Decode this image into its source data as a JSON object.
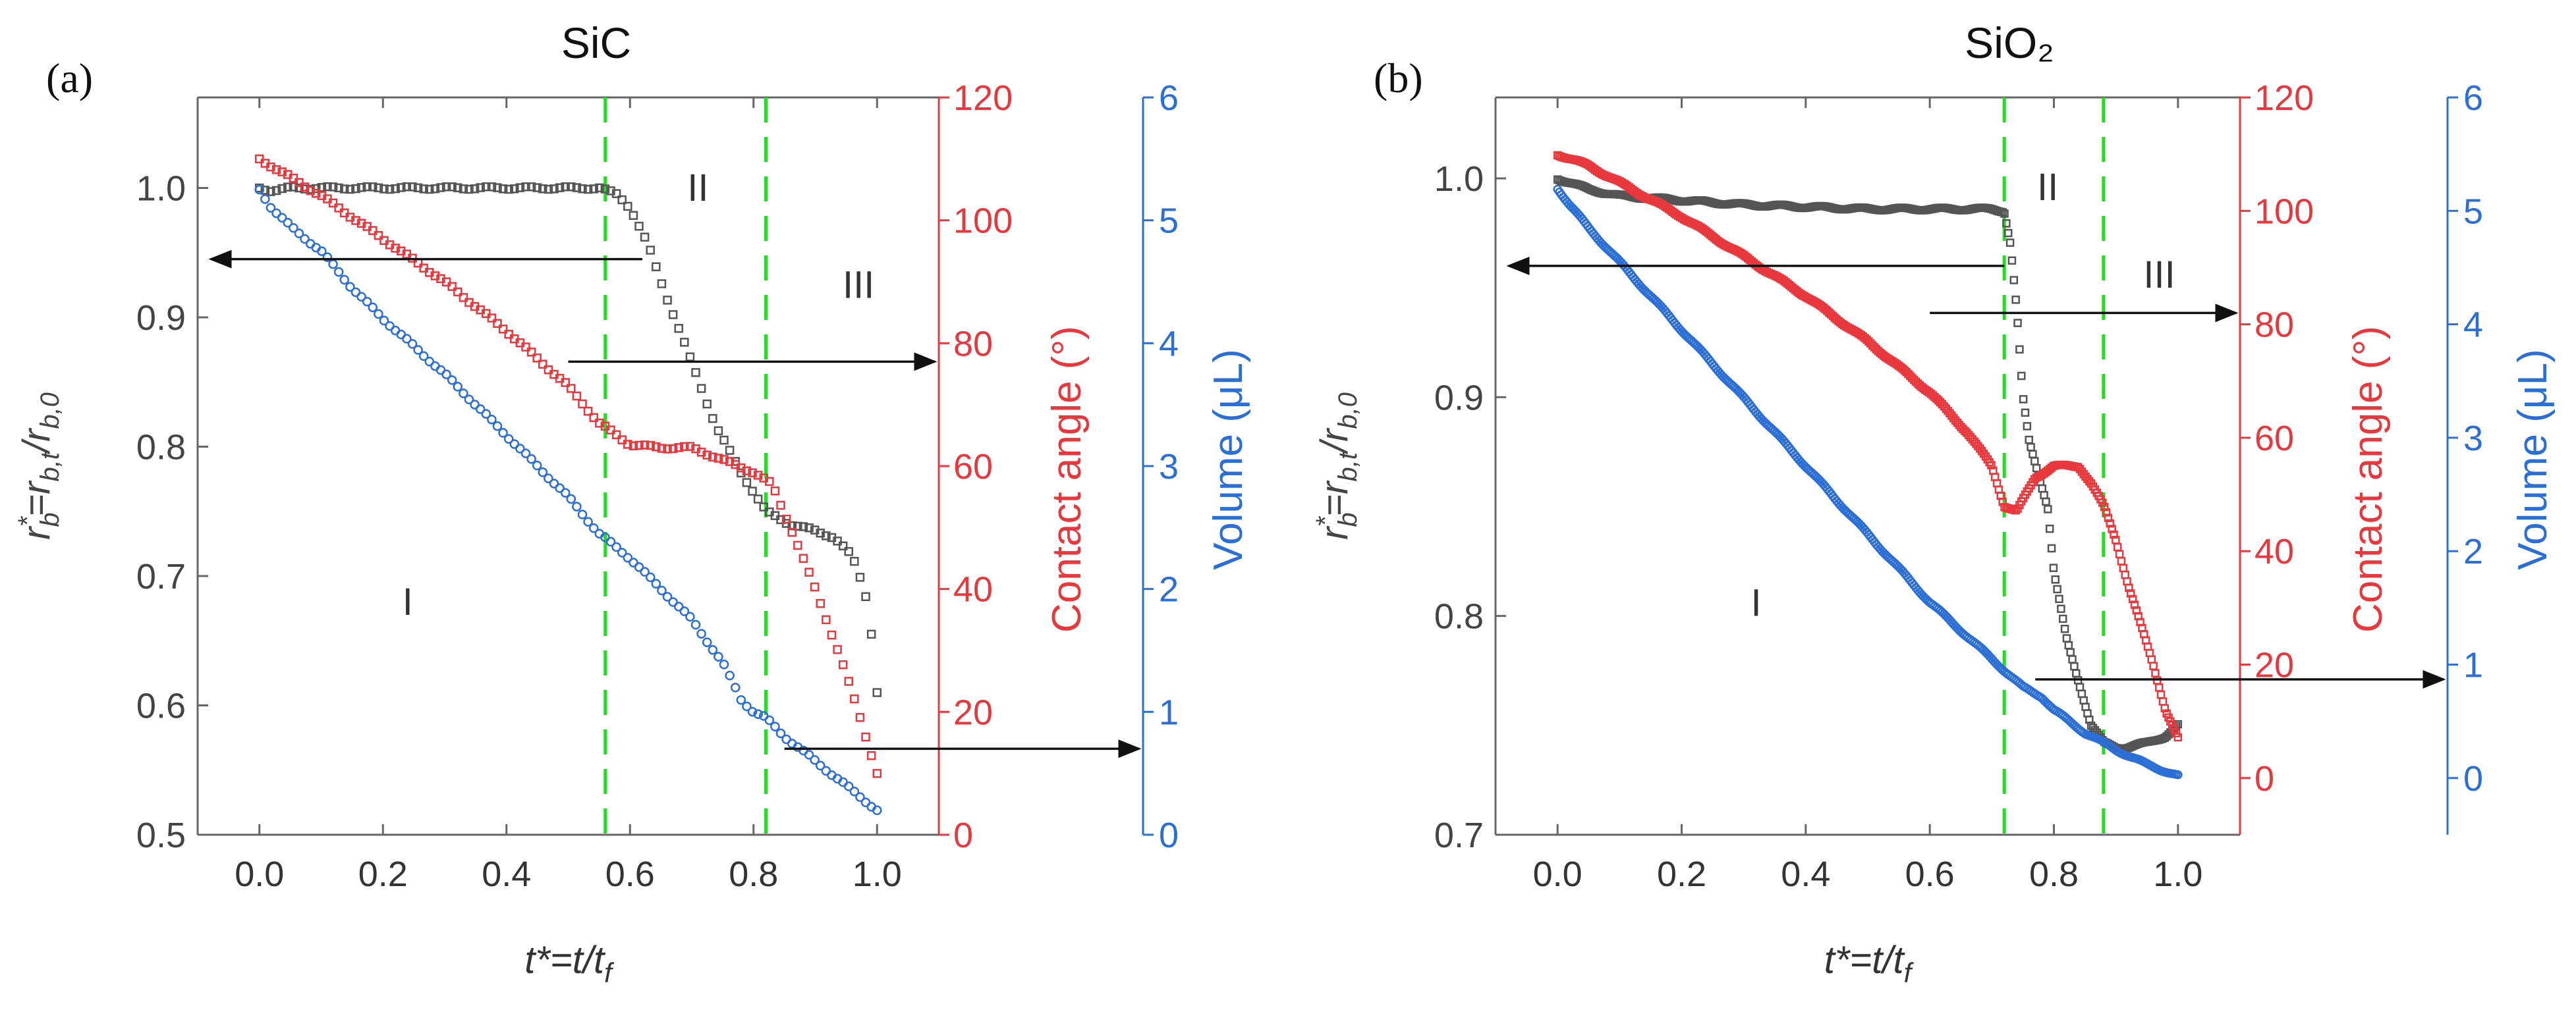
{
  "figure": {
    "colors": {
      "black": "#555555",
      "red": "#e8383d",
      "blue": "#2b6fd6",
      "green": "#22dd22",
      "arrow": "#111111"
    }
  },
  "chart_data": [
    {
      "type": "scatter",
      "panel_label": "(a)",
      "title": "SiC",
      "xlabel": "t*=t/t_f",
      "ylabel_left": "r_b*=r_b,t/r_b,0",
      "ylabel_right1": "Contact angle (°)",
      "ylabel_right2": "Volume (μL)",
      "xlim": [
        -0.1,
        1.1
      ],
      "x_ticks": [
        0.0,
        0.2,
        0.4,
        0.6,
        0.8,
        1.0
      ],
      "x_tick_labels": [
        "0.0",
        "0.2",
        "0.4",
        "0.6",
        "0.8",
        "1.0"
      ],
      "left_axis": {
        "ylim": [
          0.5,
          1.07
        ],
        "ticks": [
          0.5,
          0.6,
          0.7,
          0.8,
          0.9,
          1.0
        ],
        "tick_labels": [
          "0.5",
          "0.6",
          "0.7",
          "0.8",
          "0.9",
          "1.0"
        ]
      },
      "right_axis_1": {
        "ylim": [
          0,
          120
        ],
        "ticks": [
          0,
          20,
          40,
          60,
          80,
          100,
          120
        ],
        "tick_labels": [
          "0",
          "20",
          "40",
          "60",
          "80",
          "100",
          "120"
        ]
      },
      "right_axis_2": {
        "ylim": [
          0,
          6
        ],
        "ticks": [
          0,
          1,
          2,
          3,
          4,
          5,
          6
        ],
        "tick_labels": [
          "0",
          "1",
          "2",
          "3",
          "4",
          "5",
          "6"
        ]
      },
      "vlines": [
        0.56,
        0.82
      ],
      "region_labels": [
        {
          "text": "I",
          "x": 0.24,
          "y": 0.67
        },
        {
          "text": "II",
          "x": 0.71,
          "y": 0.99
        },
        {
          "text": "III",
          "x": 0.97,
          "y": 0.915
        }
      ],
      "series": [
        {
          "name": "r_b*",
          "axis": "left",
          "color": "black",
          "x": [
            0.0,
            0.02,
            0.05,
            0.1,
            0.2,
            0.3,
            0.4,
            0.5,
            0.55,
            0.58,
            0.6,
            0.63,
            0.66,
            0.7,
            0.74,
            0.78,
            0.82,
            0.86,
            0.9,
            0.93,
            0.96,
            0.98,
            0.99,
            1.0
          ],
          "y": [
            1.0,
            0.998,
            1.0,
            1.0,
            1.0,
            1.0,
            1.0,
            1.0,
            1.0,
            0.995,
            0.985,
            0.955,
            0.915,
            0.865,
            0.815,
            0.78,
            0.75,
            0.74,
            0.735,
            0.73,
            0.715,
            0.69,
            0.66,
            0.61
          ]
        },
        {
          "name": "Contact angle",
          "axis": "right1",
          "color": "red",
          "x": [
            0.0,
            0.05,
            0.1,
            0.2,
            0.3,
            0.4,
            0.5,
            0.55,
            0.6,
            0.65,
            0.7,
            0.75,
            0.8,
            0.83,
            0.86,
            0.9,
            0.94,
            0.97,
            1.0
          ],
          "y": [
            110,
            107,
            104,
            97,
            90,
            82,
            73,
            67,
            63.5,
            63,
            63,
            61,
            59,
            57,
            50,
            40,
            29,
            20,
            10
          ]
        },
        {
          "name": "Volume",
          "axis": "right2",
          "color": "blue",
          "x": [
            0.0,
            0.02,
            0.05,
            0.1,
            0.15,
            0.2,
            0.3,
            0.4,
            0.5,
            0.55,
            0.6,
            0.65,
            0.7,
            0.75,
            0.78,
            0.8,
            0.82,
            0.85,
            0.9,
            0.95,
            1.0
          ],
          "y": [
            5.25,
            5.1,
            4.95,
            4.75,
            4.45,
            4.2,
            3.75,
            3.25,
            2.75,
            2.45,
            2.25,
            2.0,
            1.75,
            1.4,
            1.1,
            1.0,
            0.95,
            0.8,
            0.6,
            0.4,
            0.2
          ]
        }
      ],
      "arrows": [
        {
          "series": "r_b*",
          "from_x": 0.62,
          "from_y": 0.945,
          "direction": "left"
        },
        {
          "series": "Contact angle",
          "from_x": 0.5,
          "from_y": 77,
          "direction": "right"
        },
        {
          "series": "Volume",
          "from_x": 0.85,
          "from_y": 0.7,
          "direction": "right"
        }
      ]
    },
    {
      "type": "scatter",
      "panel_label": "(b)",
      "title": "SiO₂",
      "xlabel": "t*=t/t_f",
      "ylabel_left": "r_b*=r_b,t/r_b,0",
      "ylabel_right1": "Contact angle (°)",
      "ylabel_right2": "Volume (μL)",
      "xlim": [
        -0.1,
        1.1
      ],
      "x_ticks": [
        0.0,
        0.2,
        0.4,
        0.6,
        0.8,
        1.0
      ],
      "x_tick_labels": [
        "0.0",
        "0.2",
        "0.4",
        "0.6",
        "0.8",
        "1.0"
      ],
      "left_axis": {
        "ylim": [
          0.7,
          1.037
        ],
        "ticks": [
          0.7,
          0.8,
          0.9,
          1.0
        ],
        "tick_labels": [
          "0.7",
          "0.8",
          "0.9",
          "1.0"
        ]
      },
      "right_axis_1": {
        "ylim": [
          -10,
          120
        ],
        "ticks": [
          0,
          20,
          40,
          60,
          80,
          100,
          120
        ],
        "tick_labels": [
          "0",
          "20",
          "40",
          "60",
          "80",
          "100",
          "120"
        ]
      },
      "right_axis_2": {
        "ylim": [
          -0.5,
          6
        ],
        "ticks": [
          0,
          1,
          2,
          3,
          4,
          5,
          6
        ],
        "tick_labels": [
          "0",
          "1",
          "2",
          "3",
          "4",
          "5",
          "6"
        ]
      },
      "vlines": [
        0.72,
        0.88
      ],
      "region_labels": [
        {
          "text": "I",
          "x": 0.32,
          "y": 0.8
        },
        {
          "text": "II",
          "x": 0.79,
          "y": 0.99
        },
        {
          "text": "III",
          "x": 0.97,
          "y": 0.95
        }
      ],
      "series": [
        {
          "name": "r_b*",
          "axis": "left",
          "color": "black",
          "x": [
            0.0,
            0.05,
            0.1,
            0.2,
            0.3,
            0.4,
            0.5,
            0.6,
            0.7,
            0.72,
            0.73,
            0.74,
            0.75,
            0.76,
            0.77,
            0.78,
            0.79,
            0.8,
            0.82,
            0.84,
            0.86,
            0.88,
            0.9,
            0.92,
            0.95,
            0.98,
            1.0
          ],
          "y": [
            1.0,
            0.995,
            0.992,
            0.99,
            0.988,
            0.987,
            0.986,
            0.986,
            0.986,
            0.985,
            0.97,
            0.94,
            0.9,
            0.88,
            0.87,
            0.86,
            0.85,
            0.82,
            0.79,
            0.77,
            0.75,
            0.742,
            0.74,
            0.74,
            0.742,
            0.745,
            0.75
          ]
        },
        {
          "name": "Contact angle",
          "axis": "right1",
          "color": "red",
          "x": [
            0.0,
            0.05,
            0.1,
            0.2,
            0.3,
            0.4,
            0.5,
            0.6,
            0.66,
            0.7,
            0.72,
            0.74,
            0.77,
            0.8,
            0.82,
            0.84,
            0.86,
            0.88,
            0.9,
            0.92,
            0.94,
            0.96,
            0.98,
            1.0
          ],
          "y": [
            110,
            108,
            105,
            99,
            92,
            85,
            77,
            68,
            61,
            55,
            48,
            47,
            53,
            55,
            55,
            55,
            52,
            48,
            42,
            34,
            27,
            20,
            12,
            7
          ]
        },
        {
          "name": "Volume",
          "axis": "right2",
          "color": "blue",
          "x": [
            0.0,
            0.02,
            0.05,
            0.1,
            0.2,
            0.3,
            0.4,
            0.5,
            0.6,
            0.7,
            0.75,
            0.78,
            0.8,
            0.85,
            0.9,
            0.95,
            1.0
          ],
          "y": [
            5.2,
            5.05,
            4.85,
            4.55,
            3.95,
            3.35,
            2.75,
            2.15,
            1.55,
            1.05,
            0.8,
            0.72,
            0.6,
            0.4,
            0.25,
            0.12,
            0.02
          ]
        }
      ],
      "arrows": [
        {
          "series": "r_b*",
          "from_x": 0.72,
          "from_y": 0.96,
          "direction": "left"
        },
        {
          "series": "Contact angle",
          "from_x": 0.6,
          "from_y": 82,
          "direction": "right"
        },
        {
          "series": "Volume",
          "from_x": 0.77,
          "from_y": 0.87,
          "direction": "right"
        }
      ]
    }
  ]
}
